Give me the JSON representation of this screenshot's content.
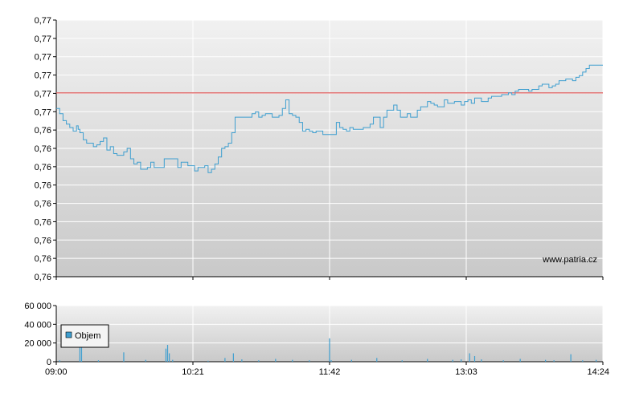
{
  "chart_data": [
    {
      "type": "line",
      "title": "",
      "y_tick_labels": [
        "0,77",
        "0,77",
        "0,77",
        "0,77",
        "0,77",
        "0,77",
        "0,76",
        "0,76",
        "0,76",
        "0,76",
        "0,76",
        "0,76",
        "0,76",
        "0,76",
        "0,76"
      ],
      "ylim": [
        0.7568,
        0.7716
      ],
      "reference_line": {
        "value": 0.7674,
        "color": "#e06666"
      },
      "x_tick_labels": [
        "09:00",
        "10:21",
        "11:42",
        "13:03",
        "14:24"
      ],
      "watermark": "www.patria.cz",
      "grid": true,
      "series": [
        {
          "color": "#3f9fd0",
          "x": [
            "09:00",
            "09:02",
            "09:04",
            "09:06",
            "09:08",
            "09:10",
            "09:12",
            "09:13",
            "09:14",
            "09:16",
            "09:18",
            "09:20",
            "09:22",
            "09:24",
            "09:26",
            "09:28",
            "09:30",
            "09:32",
            "09:34",
            "09:36",
            "09:38",
            "09:40",
            "09:42",
            "09:44",
            "09:46",
            "09:48",
            "09:50",
            "09:52",
            "09:54",
            "09:56",
            "09:58",
            "10:00",
            "10:02",
            "10:04",
            "10:06",
            "10:08",
            "10:10",
            "10:12",
            "10:14",
            "10:16",
            "10:18",
            "10:20",
            "10:22",
            "10:24",
            "10:26",
            "10:28",
            "10:30",
            "10:32",
            "10:34",
            "10:36",
            "10:38",
            "10:40",
            "10:42",
            "10:44",
            "10:46",
            "10:48",
            "10:50",
            "10:52",
            "10:54",
            "10:56",
            "10:58",
            "11:00",
            "11:02",
            "11:04",
            "11:06",
            "11:08",
            "11:10",
            "11:12",
            "11:14",
            "11:16",
            "11:18",
            "11:20",
            "11:22",
            "11:24",
            "11:26",
            "11:28",
            "11:30",
            "11:32",
            "11:34",
            "11:36",
            "11:38",
            "11:40",
            "11:42",
            "11:44",
            "11:46",
            "11:48",
            "11:50",
            "11:52",
            "11:54",
            "11:56",
            "11:58",
            "12:00",
            "12:02",
            "12:04",
            "12:06",
            "12:08",
            "12:10",
            "12:12",
            "12:14",
            "12:16",
            "12:18",
            "12:20",
            "12:22",
            "12:24",
            "12:26",
            "12:28",
            "12:30",
            "12:32",
            "12:34",
            "12:36",
            "12:38",
            "12:40",
            "12:42",
            "12:44",
            "12:46",
            "12:48",
            "12:50",
            "12:52",
            "12:54",
            "12:56",
            "12:58",
            "13:00",
            "13:02",
            "13:04",
            "13:06",
            "13:08",
            "13:10",
            "13:12",
            "13:14",
            "13:16",
            "13:18",
            "13:20",
            "13:22",
            "13:24",
            "13:26",
            "13:28",
            "13:30",
            "13:32",
            "13:34",
            "13:36",
            "13:38",
            "13:40",
            "13:42",
            "13:44",
            "13:46",
            "13:48",
            "13:50",
            "13:52",
            "13:54",
            "13:56",
            "13:58",
            "14:00",
            "14:02",
            "14:04",
            "14:06",
            "14:08",
            "14:10",
            "14:12",
            "14:14",
            "14:16",
            "14:18",
            "14:20",
            "14:22",
            "14:24"
          ],
          "y": [
            0.7665,
            0.7662,
            0.7658,
            0.7656,
            0.7654,
            0.7652,
            0.7655,
            0.7653,
            0.7651,
            0.7647,
            0.7645,
            0.7645,
            0.7643,
            0.7644,
            0.7646,
            0.7648,
            0.7641,
            0.7643,
            0.7639,
            0.7638,
            0.7638,
            0.764,
            0.7642,
            0.7636,
            0.7633,
            0.7634,
            0.763,
            0.763,
            0.7631,
            0.7634,
            0.7631,
            0.7631,
            0.7631,
            0.7636,
            0.7636,
            0.7636,
            0.7636,
            0.7631,
            0.7634,
            0.7634,
            0.7632,
            0.7632,
            0.7629,
            0.7631,
            0.7631,
            0.7632,
            0.7628,
            0.763,
            0.7633,
            0.7637,
            0.7642,
            0.7643,
            0.7645,
            0.7651,
            0.766,
            0.766,
            0.766,
            0.766,
            0.766,
            0.7662,
            0.7663,
            0.766,
            0.7661,
            0.7662,
            0.7662,
            0.766,
            0.766,
            0.7661,
            0.7665,
            0.767,
            0.7662,
            0.7661,
            0.766,
            0.7657,
            0.7652,
            0.7653,
            0.7652,
            0.7651,
            0.7652,
            0.7652,
            0.765,
            0.765,
            0.765,
            0.765,
            0.7657,
            0.7654,
            0.7653,
            0.7652,
            0.7654,
            0.7653,
            0.7653,
            0.7653,
            0.7654,
            0.7654,
            0.7656,
            0.766,
            0.766,
            0.7654,
            0.766,
            0.7664,
            0.7664,
            0.7667,
            0.7664,
            0.766,
            0.766,
            0.7662,
            0.766,
            0.766,
            0.7664,
            0.7666,
            0.7666,
            0.7669,
            0.7668,
            0.7667,
            0.7666,
            0.7666,
            0.767,
            0.7668,
            0.7668,
            0.7669,
            0.7669,
            0.7667,
            0.7669,
            0.767,
            0.7668,
            0.7671,
            0.7671,
            0.7669,
            0.7669,
            0.7671,
            0.7672,
            0.7672,
            0.7672,
            0.7673,
            0.7673,
            0.7674,
            0.7673,
            0.7675,
            0.7676,
            0.7676,
            0.7676,
            0.7675,
            0.7676,
            0.7676,
            0.7678,
            0.7679,
            0.7679,
            0.7677,
            0.7678,
            0.7679,
            0.7681,
            0.7681,
            0.7682,
            0.7682,
            0.7681,
            0.7683,
            0.7684,
            0.7686,
            0.7688,
            0.769,
            0.769,
            0.769,
            0.769,
            0.769
          ]
        }
      ]
    },
    {
      "type": "bar",
      "title": "",
      "y_tick_labels": [
        "60 000",
        "40 000",
        "20 000",
        "0"
      ],
      "ylim": [
        0,
        60000
      ],
      "x_tick_labels": [
        "09:00",
        "10:21",
        "11:42",
        "13:03",
        "14:24"
      ],
      "legend": {
        "position": "top-left",
        "label": "Objem",
        "color": "#3f9fd0"
      },
      "grid": true,
      "series": [
        {
          "name": "Objem",
          "x": [
            "09:02",
            "09:14",
            "09:15",
            "09:25",
            "09:40",
            "09:53",
            "10:05",
            "10:06",
            "10:07",
            "10:09",
            "10:30",
            "10:40",
            "10:45",
            "10:50",
            "11:00",
            "11:10",
            "11:20",
            "11:30",
            "11:42",
            "11:43",
            "11:55",
            "12:10",
            "12:25",
            "12:40",
            "12:55",
            "13:00",
            "13:05",
            "13:08",
            "13:12",
            "13:25",
            "13:35",
            "13:50",
            "13:55",
            "14:05",
            "14:12",
            "14:20"
          ],
          "values": [
            1500,
            20000,
            38000,
            1500,
            10000,
            2000,
            14000,
            18000,
            9000,
            2000,
            1000,
            4000,
            9000,
            2500,
            1500,
            3000,
            2000,
            1500,
            25000,
            1500,
            2000,
            4000,
            1500,
            3000,
            2000,
            2500,
            9000,
            6000,
            2500,
            1500,
            3000,
            2000,
            1500,
            8000,
            1500,
            2000
          ]
        }
      ]
    }
  ]
}
